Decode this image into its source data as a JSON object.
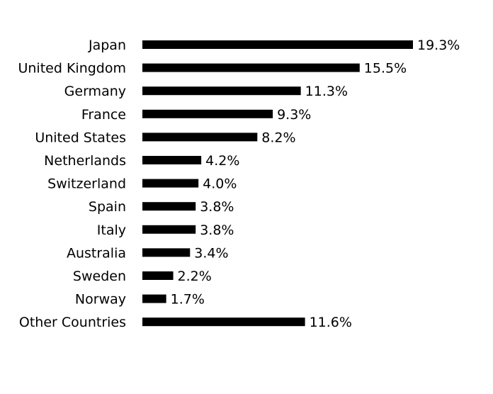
{
  "chart_data": {
    "type": "bar",
    "orientation": "horizontal",
    "categories": [
      "Japan",
      "United Kingdom",
      "Germany",
      "France",
      "United States",
      "Netherlands",
      "Switzerland",
      "Spain",
      "Italy",
      "Australia",
      "Sweden",
      "Norway",
      "Other Countries"
    ],
    "values": [
      19.3,
      15.5,
      11.3,
      9.3,
      8.2,
      4.2,
      4.0,
      3.8,
      3.8,
      3.4,
      2.2,
      1.7,
      11.6
    ],
    "value_labels": [
      "19.3%",
      "15.5%",
      "11.3%",
      "9.3%",
      "8.2%",
      "4.2%",
      "4.0%",
      "3.8%",
      "3.8%",
      "3.4%",
      "2.2%",
      "1.7%",
      "11.6%"
    ],
    "title": "",
    "xlabel": "",
    "ylabel": "",
    "xlim": [
      0,
      19.3
    ],
    "grid": false,
    "legend": "none",
    "bar_color": "#000000"
  }
}
